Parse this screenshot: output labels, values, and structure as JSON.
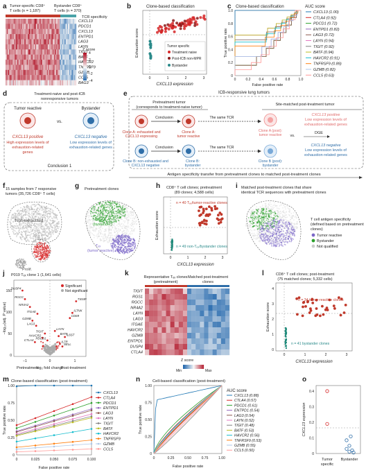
{
  "panels": {
    "a": {
      "label": "a",
      "header_tumor": "Tumor-specific CD8⁺",
      "header_tumor2": "T cells (n = 1,187)",
      "header_bystander": "Bystander CD8⁺",
      "header_bystander2": "T cells (n = 370)",
      "legend_title": "TCR specificity",
      "zscore_title": "Z score",
      "z_ticks": [
        "4",
        "2",
        "0",
        "−2",
        "−4"
      ],
      "genes": [
        "CXCL13",
        "PDCD1",
        "CXCL13",
        "ENTPD1",
        "LAG3",
        "LAYN",
        "TIGIT",
        "BATF",
        "HAVCR2",
        "TNFRSF9",
        "GZMB",
        "CCL5",
        "BAG3"
      ],
      "colors": {
        "tumor": "#c0392b",
        "bystander": "#4aa3a8"
      }
    },
    "b": {
      "label": "b",
      "title": "Clone-based classification",
      "ylabel": "Exhaustion score",
      "xlabel": "CXCL13 expression",
      "xticks": [
        "0",
        "1",
        "2",
        "3"
      ],
      "legend_title": "Tumor specific",
      "legend_items": [
        "Treatment naive",
        "Post-ICB non-MPR",
        "Bystander"
      ]
    },
    "c": {
      "label": "c",
      "title": "Clone-based classification",
      "ylabel": "True positive rate",
      "xlabel": "False positive rate",
      "xticks": [
        "0",
        "0.2",
        "0.4",
        "0.6",
        "0.8",
        "1.0"
      ],
      "yticks": [
        "0",
        "0.2",
        "0.4",
        "0.6",
        "0.8",
        "1.0"
      ],
      "auc_title": "AUC score",
      "auc": [
        "CXCL13 (1.00)",
        "CTLA4 (0.92)",
        "PDCD1 (0.72)",
        "ENTPD1 (0.82)",
        "LAG3 (0.72)",
        "LAYN (0.94)",
        "TIGIT (0.92)",
        "BATF (0.94)",
        "HAVCR2 (0.91)",
        "TNFRSF9 (0.89)",
        "GZMB (0.82)",
        "CCL5 (0.63)"
      ]
    },
    "d": {
      "label": "d",
      "title1": "Treatment-naive and post-ICB",
      "title2": "nonresponsive tumors",
      "tumor_reactive": "Tumor reactive",
      "bystander": "Bystander",
      "vs": "vs.",
      "pos_label": "CXCL13 positive",
      "pos_desc1": "High expression levels of",
      "pos_desc2": "exhaustion-related",
      "pos_desc3": "genes",
      "neg_label": "CXCL13 negative",
      "neg_desc1": "Low expression levels of",
      "neg_desc2": "exhaustion-related genes",
      "conclusion": "Conclusion 1"
    },
    "e": {
      "label": "e",
      "title": "ICB-responsive lung tumors",
      "pre_title1": "Pretreatment tumor",
      "pre_title2": "(corresponds to treatment-naive tumor)",
      "post_title": "Site-matched post-treatment tumor",
      "conclusion": "Conclusion",
      "same_tcr": "The same TCR",
      "dge": "DGE",
      "vs": "vs.",
      "cloneA1": "Clone A: exhausted and",
      "cloneA2": "CXCL13 expressing",
      "cloneA_react1": "Clone A:",
      "cloneA_react2": "tumor reactive",
      "cloneA_post1": "Clone A (post):",
      "cloneA_post2": "tumor reactive",
      "postA1": "CXCL13 positive",
      "postA2": "Low expression levels of",
      "postA3": "exhaustion-related genes",
      "cloneB1": "Clone B: non-exhausted and",
      "cloneB2": "CXCL13 negative",
      "cloneB_react1": "Clone B:",
      "cloneB_react2": "bystander",
      "cloneB_post1": "Clone B (post):",
      "cloneB_post2": "bystander",
      "postB1": "CXCL13 negative",
      "postB2": "Low expression levels of",
      "postB3": "exhaustion-related genes",
      "footer": "Antigen specificity transfer from pretreatment clones to matched post-treatment clones"
    },
    "f": {
      "label": "f",
      "title1": "15 samples from 7 responsive",
      "title2": "tumors (35,726 CD8⁺ T cells)",
      "non_exhausted": "Non-exhausted",
      "tex": "Tₑₓ",
      "prolif": "Prolif."
    },
    "g": {
      "label": "g",
      "title": "Pretreatment clones",
      "non_tex": "Non-Tₑₓ",
      "non_tex2": "(bystander)",
      "tex": "Tₑₓ",
      "tex2": "(tumor reactive)"
    },
    "h": {
      "label": "h",
      "title1": "CD8⁺ T cell clones; pretreatment",
      "title2": "(89 clones; 4,588 cells)",
      "ylabel": "Exhaustion score",
      "xlabel": "CXCL13 expression",
      "xticks": [
        "0",
        "1",
        "2",
        "3"
      ],
      "n_react": "n = 40 Tₑₓ/tumor-reactive clones",
      "n_bys": "n = 49 non-Tₑₓ/bystander clones"
    },
    "i": {
      "label": "i",
      "title1": "Matched post-treatment clones that share",
      "title2": "identical TCR sequences with pretreatment clones",
      "legend_title1": "T cell antigen specificity",
      "legend_title2": "(defined based on pretreatment",
      "legend_title3": "clones)",
      "legend": [
        "Tumor reactive",
        "Bystander",
        "Not qualified"
      ]
    },
    "j": {
      "label": "j",
      "title1": "P019 Tₑₓ clone 1 (1,641 cells)",
      "ylabel": "−log₁₀(adj. P value)",
      "xlabel": "log₂ fold change",
      "pre": "Pretreatment",
      "post": "Post-treatment",
      "legend": [
        "Significant",
        "Not significant"
      ],
      "genes": [
        "DUSP4",
        "RGCC",
        "NR4A2",
        "ITGAE",
        "TXNIP",
        "ILTNK",
        "CD69",
        "GZMB",
        "LAG3",
        "HAVCR2",
        "CTLA4",
        "IL7R",
        "TIGIT",
        "LAYN",
        "PDCD1",
        "BATF",
        "IL6ST",
        "SELL"
      ],
      "xticks": [
        "−1",
        "0",
        "1"
      ],
      "yticks": [
        "0",
        "50",
        "100",
        "150"
      ]
    },
    "k": {
      "label": "k",
      "col1": "Representative Tₑₓ clones",
      "col1b": "(pretreatment)",
      "col2": "Matched post-treatment",
      "col2b": "clones",
      "genes": [
        "TIGIT",
        "RGS1",
        "RGCC",
        "NR4A2",
        "LAYN",
        "LAG3",
        "ITGAE",
        "HAVCR2",
        "GZMB",
        "ENTPD1",
        "DUSP4",
        "CTLA4"
      ],
      "zscore": "Z score",
      "min": "Min",
      "max": "Max"
    },
    "l": {
      "label": "l",
      "title1": "CD8⁺ T cell clones; post-treatment",
      "title2": "(75 matched clones; 5,332 cells)",
      "ylabel": "Exhaustion score",
      "xlabel": "CXCL13 expression",
      "xticks": [
        "0",
        "1",
        "2",
        "3"
      ],
      "n_react": "n = 34 tumor-reactive clones",
      "n_bys": "n = 41 bystander clones"
    },
    "m": {
      "label": "m",
      "title": "Clone-based classification (post-treatment)",
      "ylabel": "True positive rate",
      "xlabel": "False positive rate",
      "xticks": [
        "0",
        "0.025",
        "0.050",
        "0.075",
        "0.100"
      ],
      "yticks": [
        "0",
        "0.25",
        "0.50",
        "0.75",
        "1.00"
      ],
      "legend": [
        "CXCL13",
        "CTLA4",
        "PDCD1",
        "ENTPD1",
        "LAG3",
        "LAYN",
        "TIGIT",
        "BATF",
        "HAVCR2",
        "TNFRSF9",
        "GZMB",
        "CCL5"
      ]
    },
    "n": {
      "label": "n",
      "title": "Cell-based classification (post-treatment)",
      "ylabel": "True positive rate",
      "xlabel": "False positive rate",
      "xticks": [
        "0",
        "0.25",
        "0.50",
        "0.75",
        "1.00"
      ],
      "yticks": [
        "0",
        "0.25",
        "0.50",
        "0.75",
        "1.00"
      ],
      "auc_title": "AUC score",
      "auc": [
        "CXCL13 (0.88)",
        "CTLA4 (0.57)",
        "PDCD1 (0.61)",
        "ENTPD1 (0.54)",
        "LAG3 (0.54)",
        "LAYN (0.52)",
        "TIGIT (0.48)",
        "BATF (0.53)",
        "HAVCR2 (0.56)",
        "TNFRSF9 (0.53)",
        "GZMB (0.55)",
        "CCL5 (0.50)"
      ]
    },
    "o": {
      "label": "o",
      "ylabel": "CXCL13 expression",
      "yticks": [
        "0",
        "0.1",
        "0.2",
        "0.3",
        "0.4"
      ],
      "cats": [
        "Tumor",
        "specific",
        "Bystander"
      ]
    }
  },
  "series_colors": [
    "#1f77b4",
    "#d62728",
    "#2ca02c",
    "#9467bd",
    "#8c564b",
    "#e377c2",
    "#7f7f7f",
    "#bcbd22",
    "#17becf",
    "#ff7f0e",
    "#aec7e8",
    "#ff9896"
  ]
}
